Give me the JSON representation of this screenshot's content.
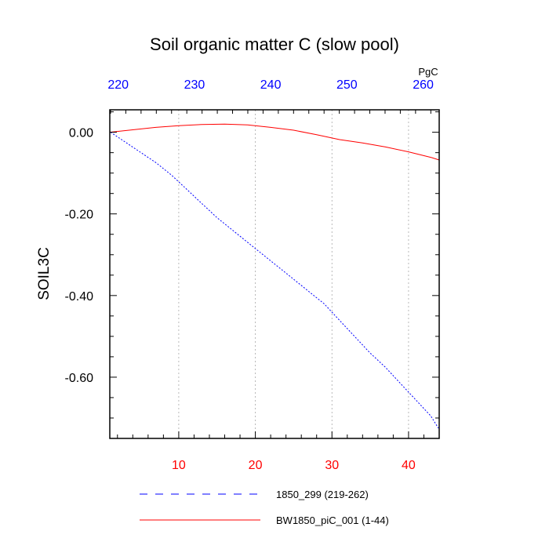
{
  "chart_data": {
    "type": "line",
    "title": "Soil organic matter C (slow pool)",
    "ylabel": "SOIL3C",
    "top_axis_unit": "PgC",
    "xlim": [
      1,
      44
    ],
    "ylim": [
      -0.75,
      0.055
    ],
    "top_axis": {
      "ticks": [
        220,
        230,
        240,
        250,
        260
      ],
      "color": "#0000ff",
      "range": [
        218.9,
        262.1
      ]
    },
    "bottom_axis": {
      "ticks": [
        10,
        20,
        30,
        40
      ],
      "color": "#ff0000"
    },
    "yticks": [
      0.0,
      -0.2,
      -0.4,
      -0.6
    ],
    "ytick_labels": [
      "0.00",
      "-0.20",
      "-0.40",
      "-0.60"
    ],
    "grid": "vertical dotted at bottom-axis ticks",
    "series": [
      {
        "name": "1850_299 (219-262)",
        "color": "#0000ff",
        "style": "dashed",
        "axis": "top",
        "x": [
          219,
          221,
          223,
          225,
          227,
          229,
          231,
          233,
          235,
          237,
          239,
          241,
          243,
          245,
          247,
          249,
          251,
          253,
          255,
          257,
          259,
          261,
          262
        ],
        "y": [
          0.0,
          -0.025,
          -0.05,
          -0.075,
          -0.105,
          -0.14,
          -0.175,
          -0.21,
          -0.24,
          -0.27,
          -0.3,
          -0.33,
          -0.36,
          -0.39,
          -0.42,
          -0.46,
          -0.5,
          -0.54,
          -0.575,
          -0.615,
          -0.655,
          -0.695,
          -0.725
        ]
      },
      {
        "name": "BW1850_piC_001 (1-44)",
        "color": "#ff0000",
        "style": "solid",
        "axis": "bottom",
        "x": [
          1,
          4,
          7,
          10,
          13,
          16,
          19,
          22,
          25,
          28,
          31,
          34,
          37,
          40,
          43,
          44
        ],
        "y": [
          0.0,
          0.006,
          0.012,
          0.016,
          0.019,
          0.02,
          0.018,
          0.012,
          0.005,
          -0.006,
          -0.018,
          -0.026,
          -0.036,
          -0.048,
          -0.062,
          -0.068
        ]
      }
    ]
  }
}
